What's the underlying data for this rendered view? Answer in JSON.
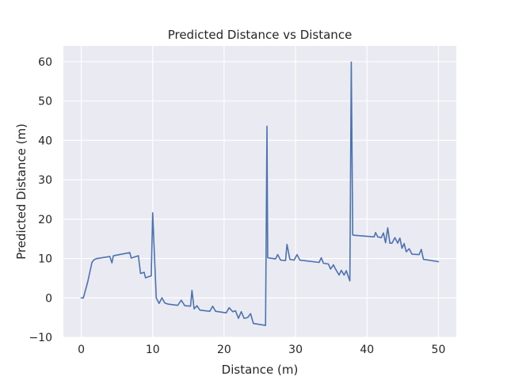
{
  "chart_data": {
    "type": "line",
    "title": "Predicted Distance vs Distance",
    "xlabel": "Distance (m)",
    "ylabel": "Predicted Distance (m)",
    "xlim": [
      -2.5,
      52.5
    ],
    "ylim": [
      -10,
      64
    ],
    "xticks": [
      0,
      10,
      20,
      30,
      40,
      50
    ],
    "yticks": [
      -10,
      0,
      10,
      20,
      30,
      40,
      50,
      60
    ],
    "grid": true,
    "legend": "none",
    "colors": {
      "line": "#4c72b0",
      "plot_background": "#eaeaf2",
      "grid": "#ffffff",
      "text": "#262626"
    },
    "series": [
      {
        "x": [
          0,
          0.3,
          0.9,
          1.5,
          1.8,
          2.2,
          4.0,
          4.3,
          4.5,
          6.8,
          7.0,
          8.0,
          8.3,
          8.8,
          9.0,
          9.8,
          10.0,
          10.5,
          10.9,
          11.3,
          11.7,
          12.2,
          13.5,
          14.0,
          14.5,
          15.3,
          15.5,
          15.8,
          16.2,
          16.6,
          18.0,
          18.4,
          18.8,
          20.3,
          20.7,
          21.2,
          21.6,
          22.0,
          22.4,
          22.8,
          23.3,
          23.7,
          24.1,
          25.8,
          26.0,
          26.1,
          27.2,
          27.5,
          27.9,
          28.6,
          28.8,
          29.2,
          29.8,
          30.2,
          30.6,
          33.3,
          33.6,
          33.9,
          34.6,
          34.9,
          35.3,
          35.6,
          36.1,
          36.4,
          36.8,
          37.1,
          37.6,
          37.8,
          38.0,
          38.2,
          41.0,
          41.2,
          41.5,
          42.0,
          42.3,
          42.6,
          42.9,
          43.2,
          43.5,
          43.9,
          44.3,
          44.6,
          44.9,
          45.2,
          45.5,
          45.9,
          46.3,
          47.3,
          47.6,
          47.9,
          50.0
        ],
        "y": [
          0.0,
          0.0,
          4.0,
          9.0,
          9.7,
          10.0,
          10.5,
          8.9,
          10.7,
          11.5,
          10.1,
          10.7,
          6.2,
          6.5,
          5.1,
          5.6,
          21.6,
          0.0,
          -1.4,
          0.0,
          -1.3,
          -1.6,
          -1.9,
          -0.6,
          -2.0,
          -2.1,
          1.9,
          -2.8,
          -2.0,
          -3.1,
          -3.4,
          -2.1,
          -3.4,
          -3.8,
          -2.5,
          -3.5,
          -3.3,
          -5.2,
          -3.5,
          -5.2,
          -5.0,
          -4.0,
          -6.5,
          -7.0,
          43.6,
          10.2,
          9.9,
          11.0,
          9.6,
          9.5,
          13.6,
          9.8,
          9.6,
          11.0,
          9.6,
          9.0,
          10.2,
          8.8,
          8.6,
          7.3,
          8.4,
          7.3,
          5.8,
          7.0,
          5.8,
          6.9,
          4.3,
          59.9,
          16.0,
          15.9,
          15.5,
          16.6,
          15.5,
          15.3,
          16.5,
          14.0,
          17.8,
          13.9,
          13.9,
          15.3,
          13.9,
          15.2,
          12.6,
          13.8,
          11.7,
          12.5,
          11.1,
          11.0,
          12.3,
          9.8,
          9.2
        ]
      }
    ]
  }
}
